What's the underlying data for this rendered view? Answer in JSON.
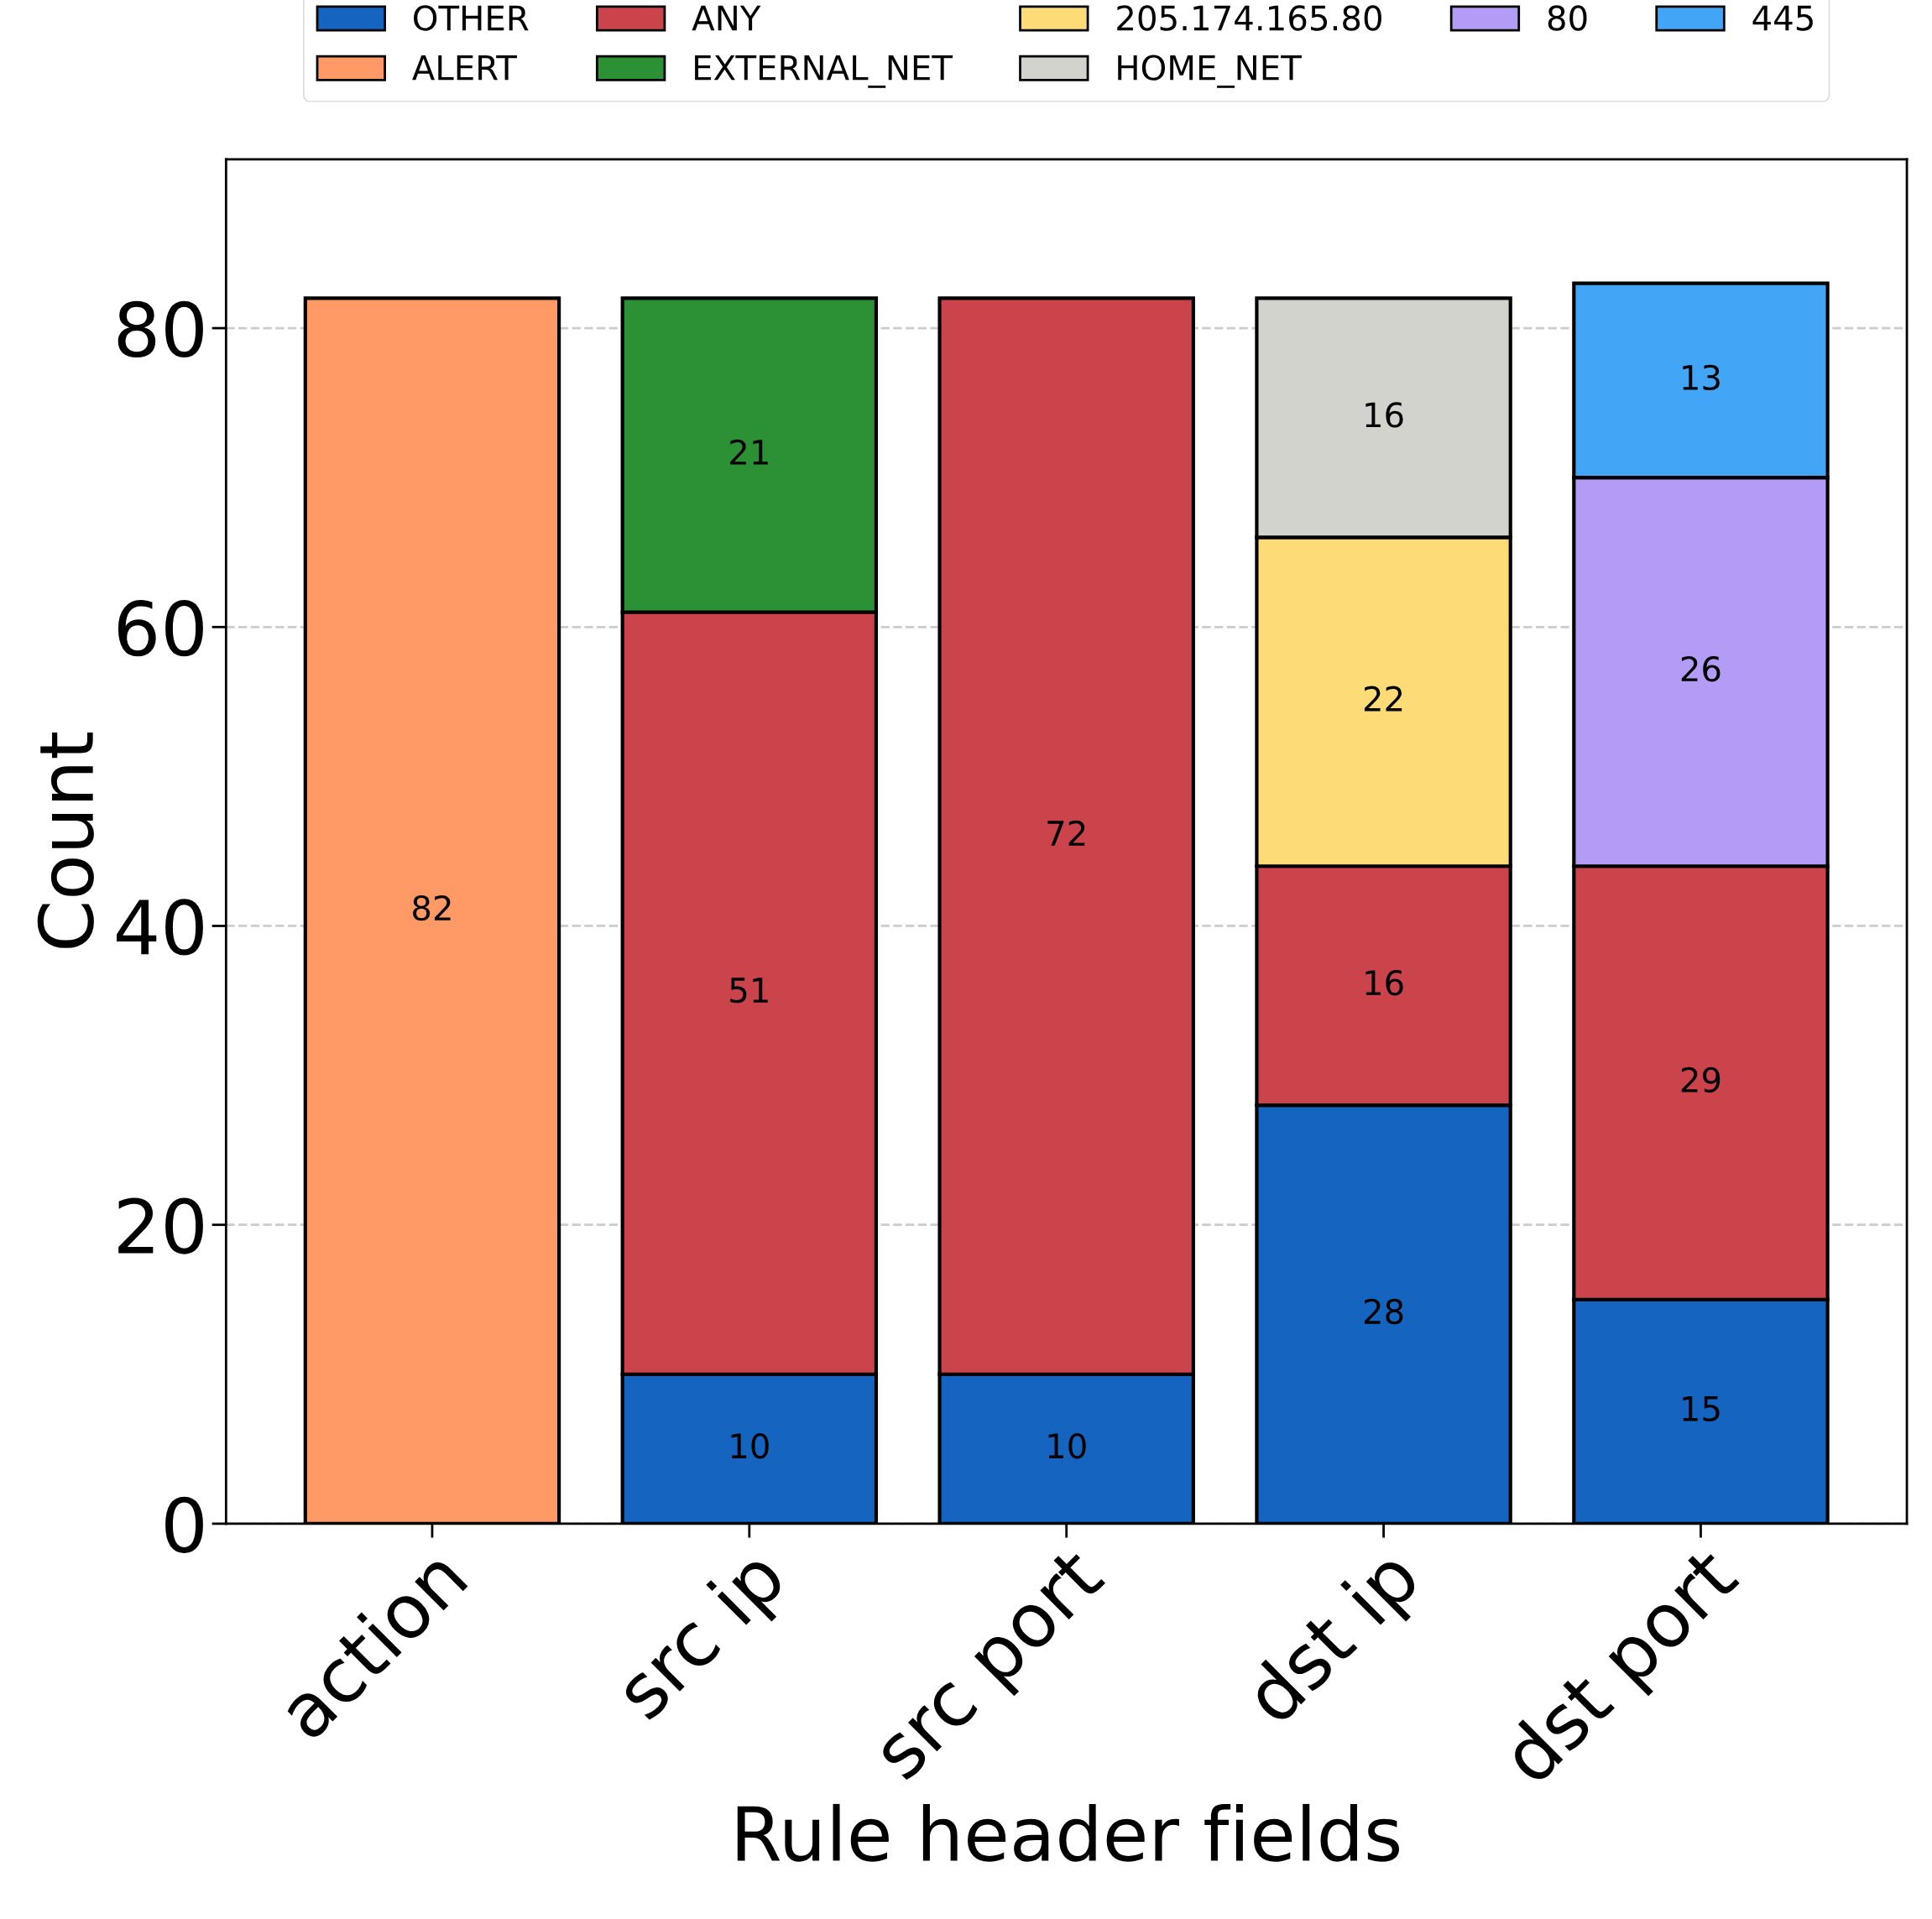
{
  "chart_data": {
    "type": "bar",
    "stacked": true,
    "xlabel": "Rule header fields",
    "ylabel": "Count",
    "categories": [
      "action",
      "src ip",
      "src port",
      "dst ip",
      "dst port"
    ],
    "series": [
      {
        "name": "OTHER",
        "color": "#1565c0",
        "values": [
          null,
          10,
          10,
          28,
          15
        ]
      },
      {
        "name": "ALERT",
        "color": "#ff9966",
        "values": [
          82,
          null,
          null,
          null,
          null
        ]
      },
      {
        "name": "ANY",
        "color": "#cc444b",
        "values": [
          null,
          51,
          72,
          16,
          29
        ]
      },
      {
        "name": "EXTERNAL_NET",
        "color": "#2b9134",
        "values": [
          null,
          21,
          null,
          null,
          null
        ]
      },
      {
        "name": "205.174.165.80",
        "color": "#fddc77",
        "values": [
          null,
          null,
          null,
          22,
          null
        ]
      },
      {
        "name": "HOME_NET",
        "color": "#d3d3ce",
        "values": [
          null,
          null,
          null,
          16,
          null
        ]
      },
      {
        "name": "80",
        "color": "#b39cf5",
        "values": [
          null,
          null,
          null,
          null,
          26
        ]
      },
      {
        "name": "445",
        "color": "#42a5f5",
        "values": [
          null,
          null,
          null,
          null,
          13
        ]
      }
    ],
    "ylim": [
      0,
      91.3
    ],
    "yticks": [
      0,
      20,
      40,
      60,
      80
    ],
    "grid": "y",
    "legend": "top",
    "data_labels": true
  }
}
